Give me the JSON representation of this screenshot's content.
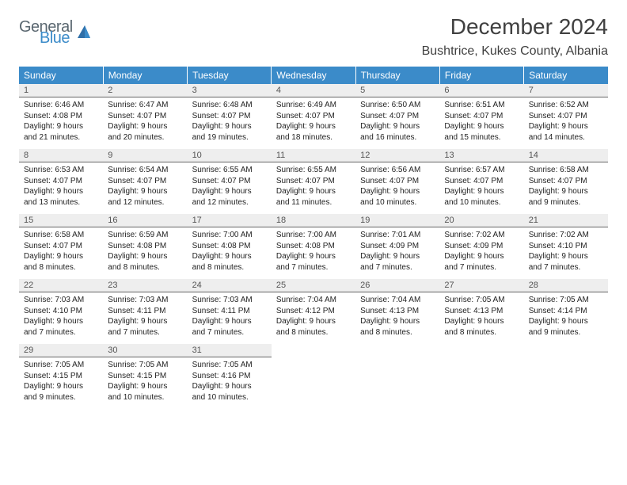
{
  "logo": {
    "text1": "General",
    "text2": "Blue",
    "color1": "#5a6770",
    "color2": "#3b8bc9"
  },
  "title": {
    "month": "December 2024",
    "location": "Bushtrice, Kukes County, Albania"
  },
  "header_bg": "#3b8bc9",
  "daynum_bg": "#eeeeee",
  "days_of_week": [
    "Sunday",
    "Monday",
    "Tuesday",
    "Wednesday",
    "Thursday",
    "Friday",
    "Saturday"
  ],
  "cells": [
    {
      "n": "1",
      "sr": "6:46 AM",
      "ss": "4:08 PM",
      "dl": "9 hours and 21 minutes."
    },
    {
      "n": "2",
      "sr": "6:47 AM",
      "ss": "4:07 PM",
      "dl": "9 hours and 20 minutes."
    },
    {
      "n": "3",
      "sr": "6:48 AM",
      "ss": "4:07 PM",
      "dl": "9 hours and 19 minutes."
    },
    {
      "n": "4",
      "sr": "6:49 AM",
      "ss": "4:07 PM",
      "dl": "9 hours and 18 minutes."
    },
    {
      "n": "5",
      "sr": "6:50 AM",
      "ss": "4:07 PM",
      "dl": "9 hours and 16 minutes."
    },
    {
      "n": "6",
      "sr": "6:51 AM",
      "ss": "4:07 PM",
      "dl": "9 hours and 15 minutes."
    },
    {
      "n": "7",
      "sr": "6:52 AM",
      "ss": "4:07 PM",
      "dl": "9 hours and 14 minutes."
    },
    {
      "n": "8",
      "sr": "6:53 AM",
      "ss": "4:07 PM",
      "dl": "9 hours and 13 minutes."
    },
    {
      "n": "9",
      "sr": "6:54 AM",
      "ss": "4:07 PM",
      "dl": "9 hours and 12 minutes."
    },
    {
      "n": "10",
      "sr": "6:55 AM",
      "ss": "4:07 PM",
      "dl": "9 hours and 12 minutes."
    },
    {
      "n": "11",
      "sr": "6:55 AM",
      "ss": "4:07 PM",
      "dl": "9 hours and 11 minutes."
    },
    {
      "n": "12",
      "sr": "6:56 AM",
      "ss": "4:07 PM",
      "dl": "9 hours and 10 minutes."
    },
    {
      "n": "13",
      "sr": "6:57 AM",
      "ss": "4:07 PM",
      "dl": "9 hours and 10 minutes."
    },
    {
      "n": "14",
      "sr": "6:58 AM",
      "ss": "4:07 PM",
      "dl": "9 hours and 9 minutes."
    },
    {
      "n": "15",
      "sr": "6:58 AM",
      "ss": "4:07 PM",
      "dl": "9 hours and 8 minutes."
    },
    {
      "n": "16",
      "sr": "6:59 AM",
      "ss": "4:08 PM",
      "dl": "9 hours and 8 minutes."
    },
    {
      "n": "17",
      "sr": "7:00 AM",
      "ss": "4:08 PM",
      "dl": "9 hours and 8 minutes."
    },
    {
      "n": "18",
      "sr": "7:00 AM",
      "ss": "4:08 PM",
      "dl": "9 hours and 7 minutes."
    },
    {
      "n": "19",
      "sr": "7:01 AM",
      "ss": "4:09 PM",
      "dl": "9 hours and 7 minutes."
    },
    {
      "n": "20",
      "sr": "7:02 AM",
      "ss": "4:09 PM",
      "dl": "9 hours and 7 minutes."
    },
    {
      "n": "21",
      "sr": "7:02 AM",
      "ss": "4:10 PM",
      "dl": "9 hours and 7 minutes."
    },
    {
      "n": "22",
      "sr": "7:03 AM",
      "ss": "4:10 PM",
      "dl": "9 hours and 7 minutes."
    },
    {
      "n": "23",
      "sr": "7:03 AM",
      "ss": "4:11 PM",
      "dl": "9 hours and 7 minutes."
    },
    {
      "n": "24",
      "sr": "7:03 AM",
      "ss": "4:11 PM",
      "dl": "9 hours and 7 minutes."
    },
    {
      "n": "25",
      "sr": "7:04 AM",
      "ss": "4:12 PM",
      "dl": "9 hours and 8 minutes."
    },
    {
      "n": "26",
      "sr": "7:04 AM",
      "ss": "4:13 PM",
      "dl": "9 hours and 8 minutes."
    },
    {
      "n": "27",
      "sr": "7:05 AM",
      "ss": "4:13 PM",
      "dl": "9 hours and 8 minutes."
    },
    {
      "n": "28",
      "sr": "7:05 AM",
      "ss": "4:14 PM",
      "dl": "9 hours and 9 minutes."
    },
    {
      "n": "29",
      "sr": "7:05 AM",
      "ss": "4:15 PM",
      "dl": "9 hours and 9 minutes."
    },
    {
      "n": "30",
      "sr": "7:05 AM",
      "ss": "4:15 PM",
      "dl": "9 hours and 10 minutes."
    },
    {
      "n": "31",
      "sr": "7:05 AM",
      "ss": "4:16 PM",
      "dl": "9 hours and 10 minutes."
    }
  ],
  "labels": {
    "sunrise": "Sunrise:",
    "sunset": "Sunset:",
    "daylight": "Daylight:"
  }
}
